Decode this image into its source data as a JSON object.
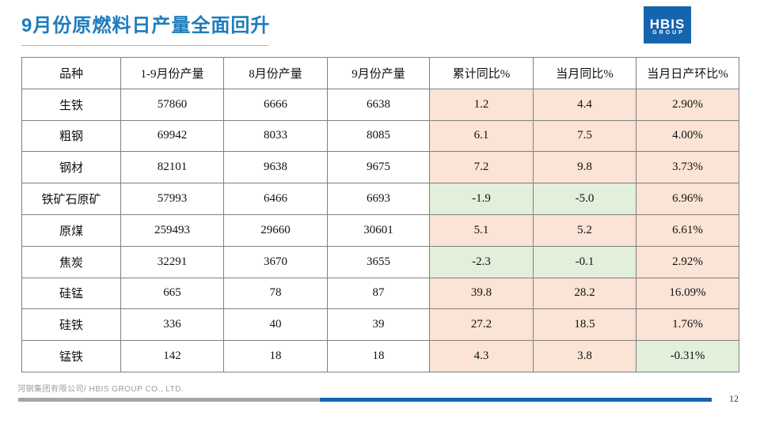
{
  "slide": {
    "title": "9月份原燃料日产量全面回升",
    "footer": "河钢集团有限公司/ HBIS GROUP CO., LTD.",
    "page_number": "12"
  },
  "logo": {
    "line1": "HBIS",
    "line2": "GROUP"
  },
  "colors": {
    "title_blue": "#1e7cbe",
    "logo_blue": "#1565ae",
    "positive_cell_peach": "#fbe3d5",
    "negative_cell_green": "#e2efda",
    "table_border_gray": "#808080",
    "progress_gray": "#a6a6a6",
    "progress_blue": "#1565ae"
  },
  "table": {
    "headers": [
      "品种",
      "1-9月份产量",
      "8月份产量",
      "9月份产量",
      "累计同比%",
      "当月同比%",
      "当月日产环比%"
    ],
    "rows": [
      {
        "cells": [
          "生铁",
          "57860",
          "6666",
          "6638",
          "1.2",
          "4.4",
          "2.90%"
        ],
        "tones": [
          "",
          "",
          "",
          "",
          "peach",
          "peach",
          "peach"
        ]
      },
      {
        "cells": [
          "粗钢",
          "69942",
          "8033",
          "8085",
          "6.1",
          "7.5",
          "4.00%"
        ],
        "tones": [
          "",
          "",
          "",
          "",
          "peach",
          "peach",
          "peach"
        ]
      },
      {
        "cells": [
          "钢材",
          "82101",
          "9638",
          "9675",
          "7.2",
          "9.8",
          "3.73%"
        ],
        "tones": [
          "",
          "",
          "",
          "",
          "peach",
          "peach",
          "peach"
        ]
      },
      {
        "cells": [
          "铁矿石原矿",
          "57993",
          "6466",
          "6693",
          "-1.9",
          "-5.0",
          "6.96%"
        ],
        "tones": [
          "",
          "",
          "",
          "",
          "green",
          "green",
          "peach"
        ]
      },
      {
        "cells": [
          "原煤",
          "259493",
          "29660",
          "30601",
          "5.1",
          "5.2",
          "6.61%"
        ],
        "tones": [
          "",
          "",
          "",
          "",
          "peach",
          "peach",
          "peach"
        ]
      },
      {
        "cells": [
          "焦炭",
          "32291",
          "3670",
          "3655",
          "-2.3",
          "-0.1",
          "2.92%"
        ],
        "tones": [
          "",
          "",
          "",
          "",
          "green",
          "green",
          "peach"
        ]
      },
      {
        "cells": [
          "硅锰",
          "665",
          "78",
          "87",
          "39.8",
          "28.2",
          "16.09%"
        ],
        "tones": [
          "",
          "",
          "",
          "",
          "peach",
          "peach",
          "peach"
        ]
      },
      {
        "cells": [
          "硅铁",
          "336",
          "40",
          "39",
          "27.2",
          "18.5",
          "1.76%"
        ],
        "tones": [
          "",
          "",
          "",
          "",
          "peach",
          "peach",
          "peach"
        ]
      },
      {
        "cells": [
          "锰铁",
          "142",
          "18",
          "18",
          "4.3",
          "3.8",
          "-0.31%"
        ],
        "tones": [
          "",
          "",
          "",
          "",
          "peach",
          "peach",
          "green"
        ]
      }
    ]
  }
}
